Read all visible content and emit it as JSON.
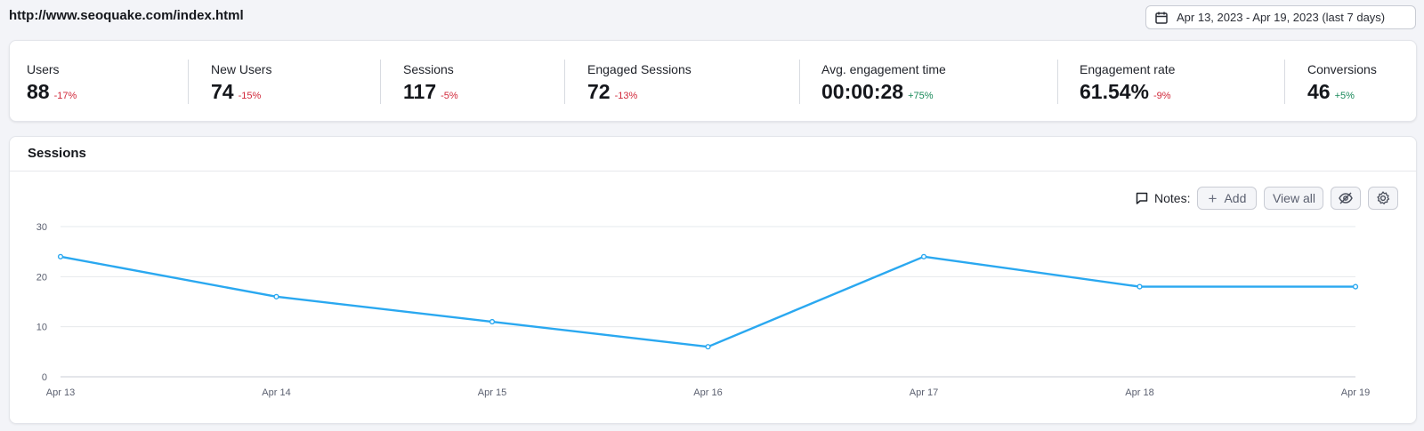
{
  "header": {
    "url": "http://www.seoquake.com/index.html",
    "date_range": "Apr 13, 2023 - Apr 19, 2023 (last 7 days)",
    "calendar_icon": "calendar-icon"
  },
  "metrics": [
    {
      "label": "Users",
      "value": "88",
      "delta": "-17%",
      "trend": "neg"
    },
    {
      "label": "New Users",
      "value": "74",
      "delta": "-15%",
      "trend": "neg"
    },
    {
      "label": "Sessions",
      "value": "117",
      "delta": "-5%",
      "trend": "neg"
    },
    {
      "label": "Engaged Sessions",
      "value": "72",
      "delta": "-13%",
      "trend": "neg"
    },
    {
      "label": "Avg. engagement time",
      "value": "00:00:28",
      "delta": "+75%",
      "trend": "pos"
    },
    {
      "label": "Engagement rate",
      "value": "61.54%",
      "delta": "-9%",
      "trend": "neg"
    },
    {
      "label": "Conversions",
      "value": "46",
      "delta": "+5%",
      "trend": "pos"
    }
  ],
  "sessions_panel": {
    "title": "Sessions",
    "notes_label": "Notes:",
    "add_label": "Add",
    "view_all_label": "View all"
  },
  "colors": {
    "line": "#2aa8f0",
    "negative": "#d1283a",
    "positive": "#1a8a5a"
  },
  "chart_data": {
    "type": "line",
    "categories": [
      "Apr 13",
      "Apr 14",
      "Apr 15",
      "Apr 16",
      "Apr 17",
      "Apr 18",
      "Apr 19"
    ],
    "values": [
      24,
      16,
      11,
      6,
      24,
      18,
      18
    ],
    "yticks": [
      0,
      10,
      20,
      30
    ],
    "ylim": [
      0,
      30
    ],
    "grid": true,
    "title": "",
    "xlabel": "",
    "ylabel": ""
  }
}
